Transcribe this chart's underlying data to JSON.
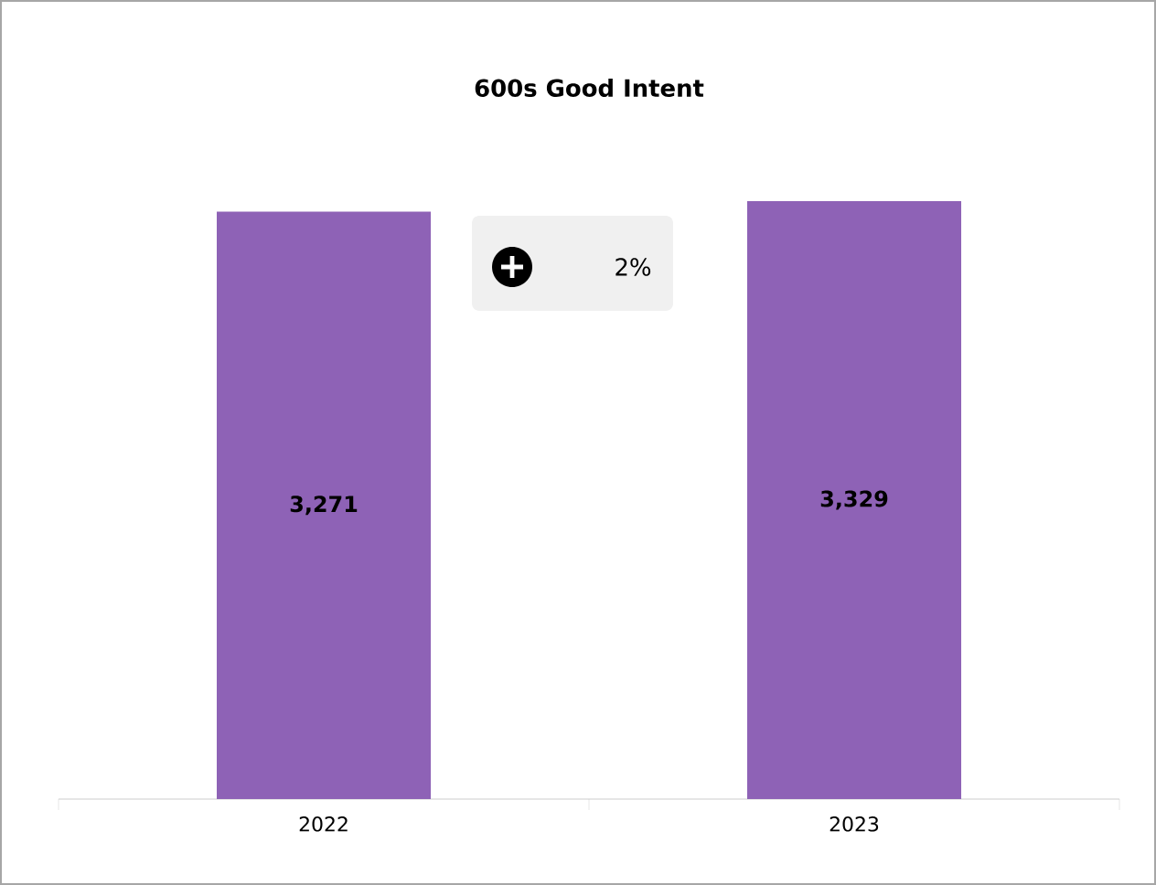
{
  "chart_data": {
    "type": "bar",
    "title": "600s Good Intent",
    "categories": [
      "2022",
      "2023"
    ],
    "values": [
      3271,
      3329
    ],
    "color": "#8e62b6",
    "value_labels": [
      "3,271",
      "3,329"
    ],
    "annotations": [
      "2%"
    ]
  }
}
